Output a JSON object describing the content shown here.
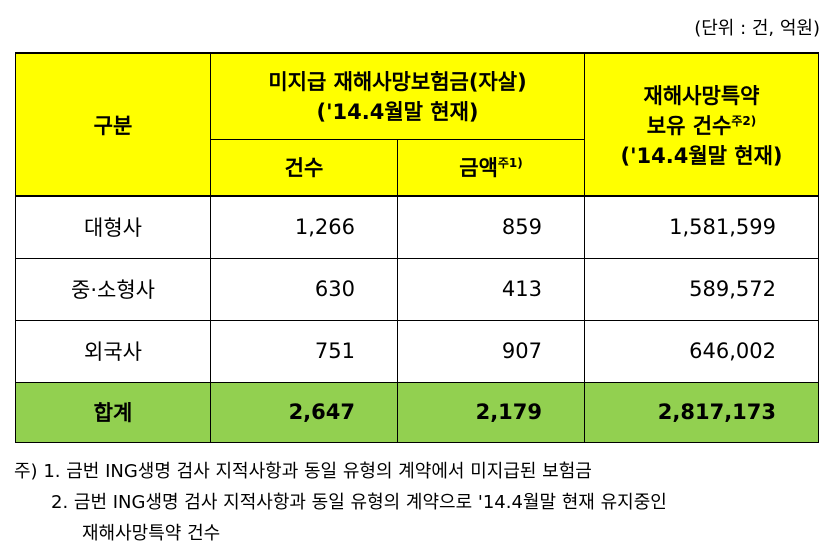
{
  "unit_label": "(단위 : 건, 억원)",
  "table": {
    "header": {
      "category": "구분",
      "group1_line1": "미지급 재해사망보험금(자살)",
      "group1_line2": "('14.4월말 현재)",
      "count": "건수",
      "amount": "금액",
      "amount_note": "주1)",
      "group2_line1": "재해사망특약",
      "group2_line2": "보유 건수",
      "group2_note": "주2)",
      "group2_line3": "('14.4월말 현재)"
    },
    "rows": [
      {
        "label": "대형사",
        "count": "1,266",
        "amount": "859",
        "holdings": "1,581,599"
      },
      {
        "label": "중·소형사",
        "count": "630",
        "amount": "413",
        "holdings": "589,572"
      },
      {
        "label": "외국사",
        "count": "751",
        "amount": "907",
        "holdings": "646,002"
      }
    ],
    "total": {
      "label": "합계",
      "count": "2,647",
      "amount": "2,179",
      "holdings": "2,817,173"
    }
  },
  "notes": {
    "prefix": "주)",
    "note1": "1. 금번 ING생명 검사 지적사항과 동일 유형의 계약에서 미지급된 보험금",
    "note2": "2. 금번 ING생명 검사 지적사항과 동일 유형의 계약으로 '14.4월말 현재 유지중인",
    "note2_cont": "재해사망특약 건수"
  },
  "colors": {
    "header_bg": "#ffff00",
    "total_bg": "#92d050"
  }
}
